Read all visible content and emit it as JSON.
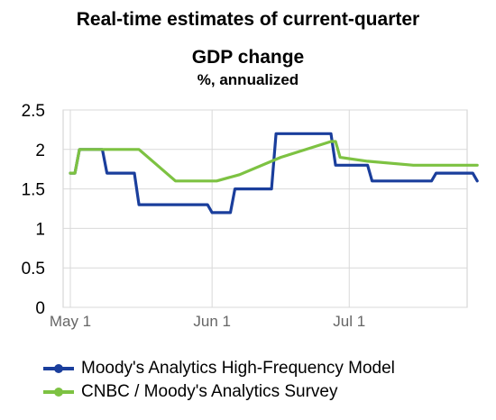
{
  "chart_data": {
    "type": "line",
    "title": "Real-time estimates of current-quarter",
    "subtitle": "GDP change",
    "ylabel": "%, annualized",
    "xlabel": "",
    "x_tick_labels": [
      "May 1",
      "Jun 1",
      "Jul 1"
    ],
    "y_tick_labels": [
      "0",
      "0.5",
      "1",
      "1.5",
      "2",
      "2.5"
    ],
    "ylim": [
      0,
      2.5
    ],
    "xlim": [
      "2014-05-01",
      "2014-07-29"
    ],
    "grid": true,
    "legend_position": "bottom",
    "series": [
      {
        "name": "Moody's Analytics High-Frequency Model",
        "color": "#1a3e9c",
        "points": [
          [
            "2014-05-01",
            1.7
          ],
          [
            "2014-05-02",
            1.7
          ],
          [
            "2014-05-03",
            2.0
          ],
          [
            "2014-05-08",
            2.0
          ],
          [
            "2014-05-09",
            1.7
          ],
          [
            "2014-05-15",
            1.7
          ],
          [
            "2014-05-16",
            1.3
          ],
          [
            "2014-05-31",
            1.3
          ],
          [
            "2014-06-01",
            1.2
          ],
          [
            "2014-06-05",
            1.2
          ],
          [
            "2014-06-06",
            1.5
          ],
          [
            "2014-06-14",
            1.5
          ],
          [
            "2014-06-15",
            2.2
          ],
          [
            "2014-06-27",
            2.2
          ],
          [
            "2014-06-28",
            1.8
          ],
          [
            "2014-07-05",
            1.8
          ],
          [
            "2014-07-06",
            1.6
          ],
          [
            "2014-07-19",
            1.6
          ],
          [
            "2014-07-20",
            1.7
          ],
          [
            "2014-07-28",
            1.7
          ],
          [
            "2014-07-29",
            1.6
          ]
        ]
      },
      {
        "name": "CNBC / Moody's Analytics Survey",
        "color": "#7dc242",
        "points": [
          [
            "2014-05-01",
            1.7
          ],
          [
            "2014-05-02",
            1.7
          ],
          [
            "2014-05-03",
            2.0
          ],
          [
            "2014-05-16",
            2.0
          ],
          [
            "2014-05-19",
            1.85
          ],
          [
            "2014-05-24",
            1.6
          ],
          [
            "2014-06-02",
            1.6
          ],
          [
            "2014-06-07",
            1.68
          ],
          [
            "2014-06-16",
            1.9
          ],
          [
            "2014-06-27",
            2.1
          ],
          [
            "2014-06-28",
            2.1
          ],
          [
            "2014-06-29",
            1.9
          ],
          [
            "2014-07-05",
            1.85
          ],
          [
            "2014-07-15",
            1.8
          ],
          [
            "2014-07-29",
            1.8
          ]
        ]
      }
    ]
  }
}
